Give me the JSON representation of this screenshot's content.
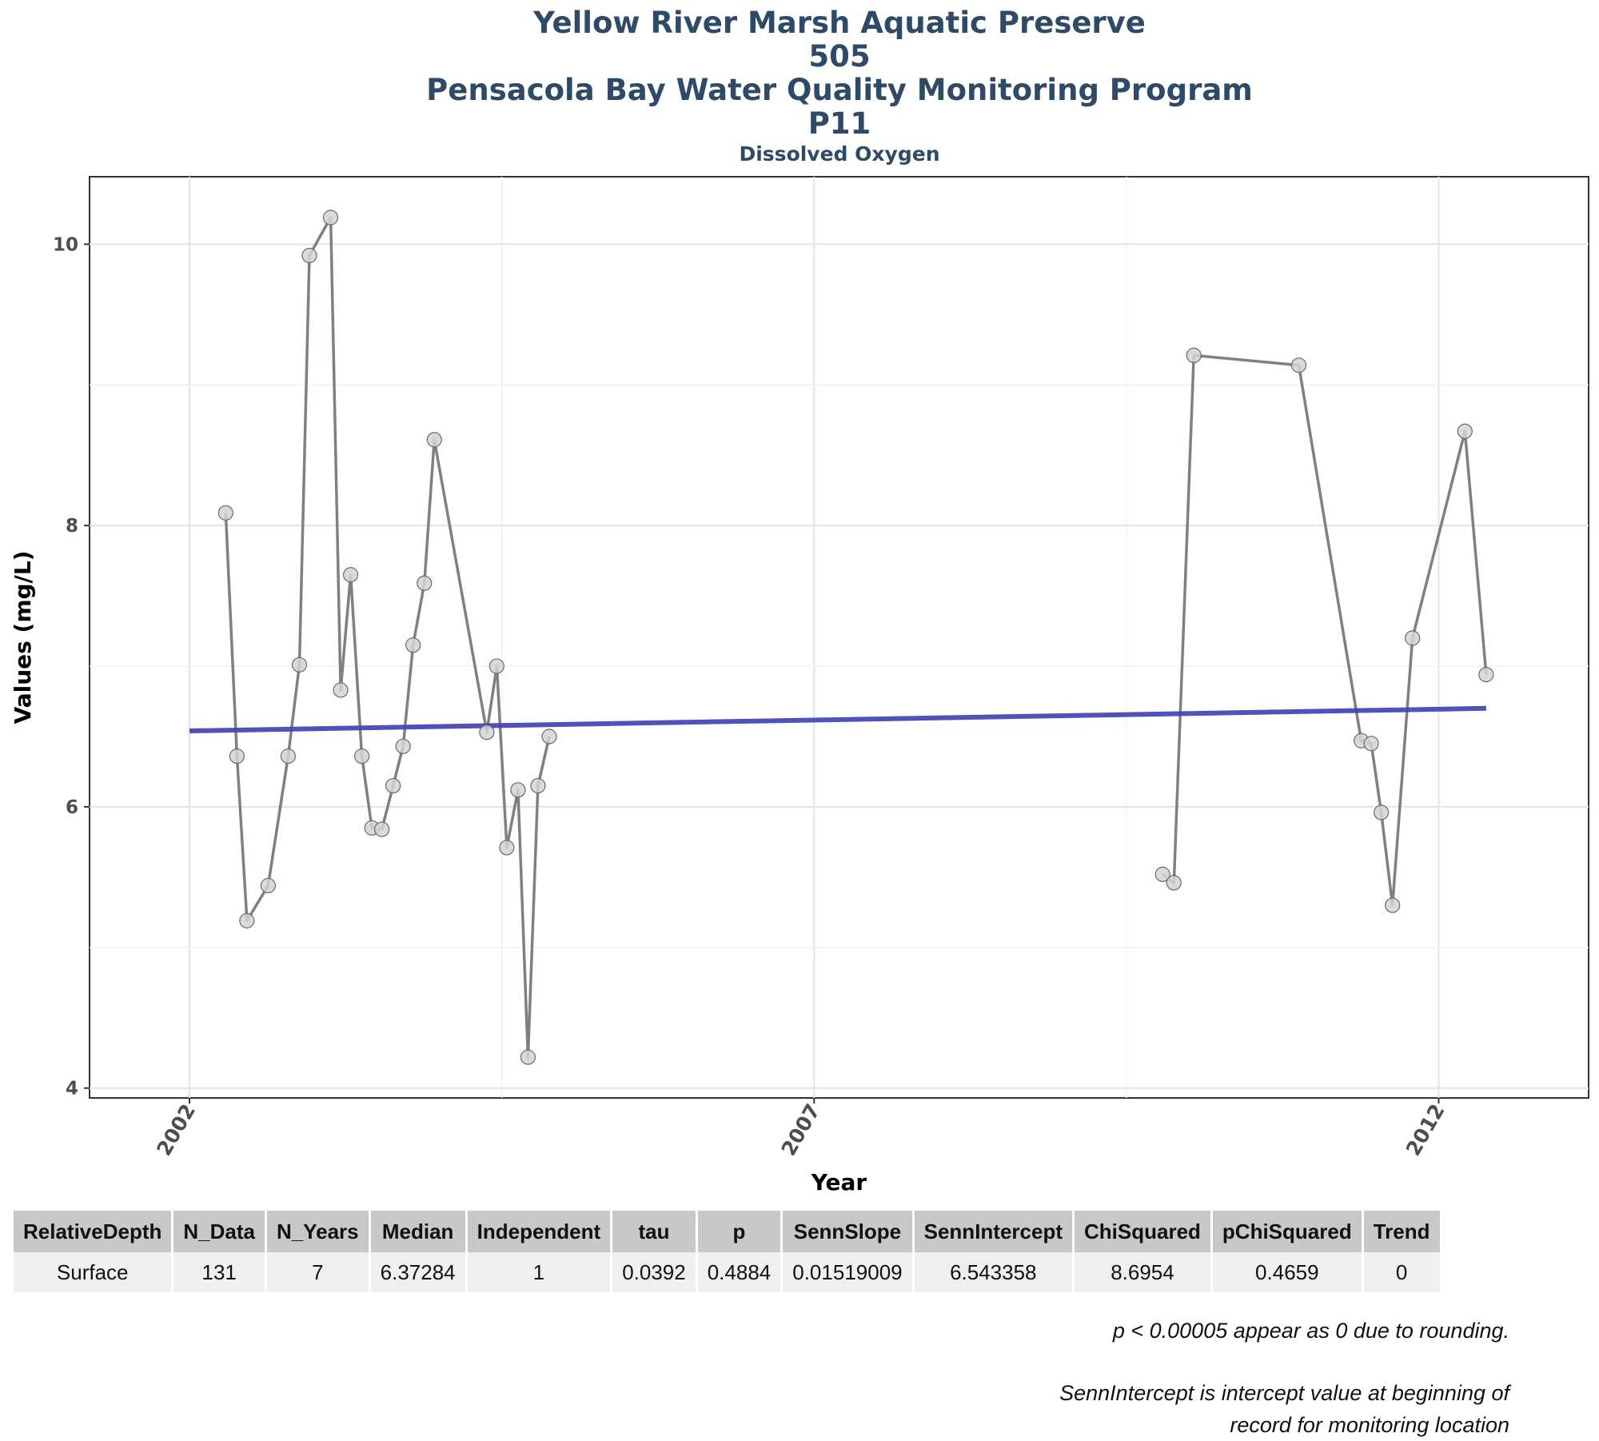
{
  "chart_data": {
    "type": "line",
    "title": "Yellow River Marsh Aquatic Preserve",
    "subtitle_lines": [
      "505",
      "Pensacola Bay Water Quality Monitoring Program",
      "P11",
      "Dissolved Oxygen"
    ],
    "xlabel": "Year",
    "ylabel": "Values (mg/L)",
    "xlim": [
      2001.2,
      2013.2
    ],
    "ylim": [
      3.93,
      10.48
    ],
    "x_ticks": [
      2002,
      2007,
      2012
    ],
    "x_tick_labels": [
      "2002",
      "2007",
      "2012"
    ],
    "y_ticks": [
      4,
      6,
      8,
      10
    ],
    "y_tick_labels": [
      "4",
      "6",
      "8",
      "10"
    ],
    "grid": true,
    "series": [
      {
        "kind": "observations",
        "color": "#808080",
        "x": [
          2002.29,
          2002.38,
          2002.46,
          2002.63,
          2002.79,
          2002.88,
          2002.96,
          2003.13,
          2003.21,
          2003.29,
          2003.38,
          2003.46,
          2003.54,
          2003.63,
          2003.71,
          2003.79,
          2003.88,
          2003.96,
          2004.38,
          2004.46,
          2004.54,
          2004.63,
          2004.71,
          2004.79,
          2004.88
        ],
        "y": [
          8.09,
          6.36,
          5.19,
          5.44,
          6.36,
          7.01,
          9.92,
          10.19,
          6.83,
          7.65,
          6.36,
          5.85,
          5.84,
          6.15,
          6.43,
          7.15,
          7.59,
          8.61,
          6.53,
          7.0,
          5.71,
          6.12,
          4.22,
          6.15,
          6.5
        ]
      },
      {
        "kind": "observations",
        "color": "#808080",
        "x": [
          2009.79,
          2009.88,
          2010.04,
          2010.88,
          2011.38,
          2011.46,
          2011.54,
          2011.63,
          2011.79,
          2012.21,
          2012.38
        ],
        "y": [
          5.52,
          5.46,
          9.21,
          9.14,
          6.47,
          6.45,
          5.96,
          5.3,
          7.2,
          8.67,
          6.94
        ]
      },
      {
        "kind": "trend",
        "color": "#4242b4",
        "x": [
          2002.0,
          2012.38
        ],
        "y": [
          6.54,
          6.7
        ]
      }
    ]
  },
  "table": {
    "headers": [
      "RelativeDepth",
      "N_Data",
      "N_Years",
      "Median",
      "Independent",
      "tau",
      "p",
      "SennSlope",
      "SennIntercept",
      "ChiSquared",
      "pChiSquared",
      "Trend"
    ],
    "rows": [
      [
        "Surface",
        "131",
        "7",
        "6.37284",
        "1",
        "0.0392",
        "0.4884",
        "0.01519009",
        "6.543358",
        "8.6954",
        "0.4659",
        "0"
      ]
    ]
  },
  "notes": {
    "rounding": "p < 0.00005 appear as 0 due to rounding.",
    "intercept_line1": "SennIntercept is intercept value at beginning of",
    "intercept_line2": "record for monitoring location"
  }
}
